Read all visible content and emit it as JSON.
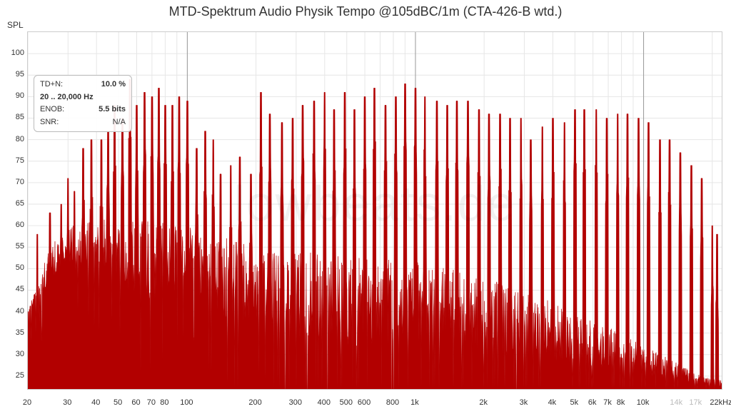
{
  "title": "MTD-Spektrum Audio Physik Tempo @105dBC/1m (CTA-426-B wtd.)",
  "ylabel": "SPL",
  "watermark": "lowbeats.de",
  "info": {
    "tdn_label": "TD+N:",
    "tdn_value": "10.0 %",
    "range": "20 .. 20,000 Hz",
    "enob_label": "ENOB:",
    "enob_value": "5.5 bits",
    "snr_label": "SNR:",
    "snr_value": "N/A"
  },
  "chart": {
    "type": "spectrum",
    "xscale": "log",
    "xlim": [
      20,
      22000
    ],
    "ylim": [
      22,
      105
    ],
    "background_color": "#ffffff",
    "grid_color": "#e6e6e6",
    "major_grid_color": "#d9d9d9",
    "dark_grid_color": "#999999",
    "axis_color": "#cccccc",
    "trace_color": "#b20000",
    "trace_fill": "#b20000",
    "label_fontsize": 11,
    "title_fontsize": 18,
    "title_color": "#333333",
    "tick_color": "#333333",
    "faded_tick_color": "#bbbbbb",
    "yticks": [
      25,
      30,
      35,
      40,
      45,
      50,
      55,
      60,
      65,
      70,
      75,
      80,
      85,
      90,
      95,
      100
    ],
    "xticks": [
      {
        "v": 20,
        "l": "20"
      },
      {
        "v": 30,
        "l": "30"
      },
      {
        "v": 40,
        "l": "40"
      },
      {
        "v": 50,
        "l": "50"
      },
      {
        "v": 60,
        "l": "60"
      },
      {
        "v": 70,
        "l": "70"
      },
      {
        "v": 80,
        "l": "80"
      },
      {
        "v": 100,
        "l": "100"
      },
      {
        "v": 200,
        "l": "200"
      },
      {
        "v": 300,
        "l": "300"
      },
      {
        "v": 400,
        "l": "400"
      },
      {
        "v": 500,
        "l": "500"
      },
      {
        "v": 600,
        "l": "600"
      },
      {
        "v": 800,
        "l": "800"
      },
      {
        "v": 1000,
        "l": "1k"
      },
      {
        "v": 2000,
        "l": "2k"
      },
      {
        "v": 3000,
        "l": "3k"
      },
      {
        "v": 4000,
        "l": "4k"
      },
      {
        "v": 5000,
        "l": "5k"
      },
      {
        "v": 6000,
        "l": "6k"
      },
      {
        "v": 7000,
        "l": "7k"
      },
      {
        "v": 8000,
        "l": "8k"
      },
      {
        "v": 10000,
        "l": "10k"
      },
      {
        "v": 14000,
        "l": "14k",
        "faded": true
      },
      {
        "v": 17000,
        "l": "17k",
        "faded": true
      },
      {
        "v": 22000,
        "l": "22kHz"
      }
    ],
    "dark_vlines": [
      100,
      1000,
      10000
    ],
    "noise_floor": [
      {
        "f": 20,
        "db": 40
      },
      {
        "f": 25,
        "db": 55
      },
      {
        "f": 30,
        "db": 60
      },
      {
        "f": 50,
        "db": 62
      },
      {
        "f": 100,
        "db": 60
      },
      {
        "f": 200,
        "db": 55
      },
      {
        "f": 500,
        "db": 53
      },
      {
        "f": 1000,
        "db": 52
      },
      {
        "f": 2000,
        "db": 48
      },
      {
        "f": 3000,
        "db": 45
      },
      {
        "f": 5000,
        "db": 40
      },
      {
        "f": 8000,
        "db": 35
      },
      {
        "f": 12000,
        "db": 30
      },
      {
        "f": 18000,
        "db": 25
      },
      {
        "f": 22000,
        "db": 24
      }
    ],
    "noise_floor_min": [
      {
        "f": 20,
        "db": 38
      },
      {
        "f": 30,
        "db": 48
      },
      {
        "f": 50,
        "db": 42
      },
      {
        "f": 60,
        "db": 32
      },
      {
        "f": 100,
        "db": 40
      },
      {
        "f": 150,
        "db": 28
      },
      {
        "f": 200,
        "db": 30
      },
      {
        "f": 300,
        "db": 25
      },
      {
        "f": 500,
        "db": 23
      },
      {
        "f": 22000,
        "db": 22
      }
    ],
    "tone_peaks": [
      {
        "f": 20,
        "db": 40
      },
      {
        "f": 22,
        "db": 58
      },
      {
        "f": 25,
        "db": 63
      },
      {
        "f": 28,
        "db": 65
      },
      {
        "f": 30,
        "db": 71
      },
      {
        "f": 32,
        "db": 68
      },
      {
        "f": 35,
        "db": 78
      },
      {
        "f": 38,
        "db": 80
      },
      {
        "f": 42,
        "db": 80
      },
      {
        "f": 45,
        "db": 82
      },
      {
        "f": 48,
        "db": 88
      },
      {
        "f": 52,
        "db": 85
      },
      {
        "f": 56,
        "db": 94
      },
      {
        "f": 60,
        "db": 88
      },
      {
        "f": 65,
        "db": 91
      },
      {
        "f": 70,
        "db": 90
      },
      {
        "f": 75,
        "db": 92
      },
      {
        "f": 80,
        "db": 88
      },
      {
        "f": 86,
        "db": 88
      },
      {
        "f": 92,
        "db": 90
      },
      {
        "f": 100,
        "db": 89
      },
      {
        "f": 110,
        "db": 78
      },
      {
        "f": 120,
        "db": 82
      },
      {
        "f": 130,
        "db": 80
      },
      {
        "f": 140,
        "db": 72
      },
      {
        "f": 155,
        "db": 74
      },
      {
        "f": 170,
        "db": 76
      },
      {
        "f": 190,
        "db": 72
      },
      {
        "f": 210,
        "db": 91
      },
      {
        "f": 230,
        "db": 86
      },
      {
        "f": 260,
        "db": 84
      },
      {
        "f": 290,
        "db": 85
      },
      {
        "f": 320,
        "db": 88
      },
      {
        "f": 360,
        "db": 89
      },
      {
        "f": 400,
        "db": 91
      },
      {
        "f": 440,
        "db": 87
      },
      {
        "f": 490,
        "db": 91
      },
      {
        "f": 540,
        "db": 87
      },
      {
        "f": 600,
        "db": 90
      },
      {
        "f": 660,
        "db": 92
      },
      {
        "f": 740,
        "db": 88
      },
      {
        "f": 820,
        "db": 90
      },
      {
        "f": 900,
        "db": 93
      },
      {
        "f": 1000,
        "db": 92
      },
      {
        "f": 1100,
        "db": 90
      },
      {
        "f": 1240,
        "db": 89
      },
      {
        "f": 1380,
        "db": 88
      },
      {
        "f": 1520,
        "db": 89
      },
      {
        "f": 1700,
        "db": 89
      },
      {
        "f": 1900,
        "db": 87
      },
      {
        "f": 2100,
        "db": 86
      },
      {
        "f": 2350,
        "db": 86
      },
      {
        "f": 2600,
        "db": 85
      },
      {
        "f": 2900,
        "db": 85
      },
      {
        "f": 3200,
        "db": 80
      },
      {
        "f": 3600,
        "db": 83
      },
      {
        "f": 4000,
        "db": 85
      },
      {
        "f": 4500,
        "db": 84
      },
      {
        "f": 5000,
        "db": 87
      },
      {
        "f": 5500,
        "db": 87
      },
      {
        "f": 6200,
        "db": 87
      },
      {
        "f": 6900,
        "db": 85
      },
      {
        "f": 7700,
        "db": 86
      },
      {
        "f": 8500,
        "db": 86
      },
      {
        "f": 9500,
        "db": 85
      },
      {
        "f": 10500,
        "db": 84
      },
      {
        "f": 11800,
        "db": 80
      },
      {
        "f": 13000,
        "db": 80
      },
      {
        "f": 14500,
        "db": 77
      },
      {
        "f": 16200,
        "db": 74
      },
      {
        "f": 18000,
        "db": 71
      },
      {
        "f": 20000,
        "db": 60
      },
      {
        "f": 21000,
        "db": 58
      }
    ]
  }
}
